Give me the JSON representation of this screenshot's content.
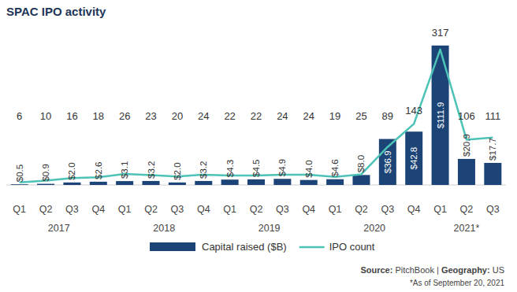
{
  "chart_data": {
    "type": "bar",
    "title": "SPAC IPO activity",
    "categories": [
      "Q1",
      "Q2",
      "Q3",
      "Q4",
      "Q1",
      "Q2",
      "Q3",
      "Q4",
      "Q1",
      "Q2",
      "Q3",
      "Q4",
      "Q1",
      "Q2",
      "Q3",
      "Q4",
      "Q1",
      "Q2",
      "Q3"
    ],
    "x_groups": [
      "2017",
      "2017",
      "2017",
      "2017",
      "2018",
      "2018",
      "2018",
      "2018",
      "2019",
      "2019",
      "2019",
      "2019",
      "2020",
      "2020",
      "2020",
      "2020",
      "2021*",
      "2021*",
      "2021*"
    ],
    "series": [
      {
        "name": "Capital raised ($B)",
        "type": "bar",
        "color": "#1d4477",
        "values": [
          0.5,
          0.9,
          2.0,
          2.6,
          3.1,
          3.2,
          2.0,
          3.2,
          4.3,
          4.5,
          4.9,
          4.0,
          4.6,
          8.0,
          36.9,
          42.8,
          111.9,
          20.9,
          17.7
        ],
        "value_labels": [
          "$0.5",
          "$0.9",
          "$2.0",
          "$2.6",
          "$3.1",
          "$3.2",
          "$2.0",
          "$3.2",
          "$4.3",
          "$4.5",
          "$4.9",
          "$4.0",
          "$4.6",
          "$8.0",
          "$36.9",
          "$42.8",
          "$111.9",
          "$20.9",
          "$17.7"
        ]
      },
      {
        "name": "IPO count",
        "type": "line",
        "color": "#4cc3b6",
        "axis": "y2",
        "values": [
          6,
          10,
          16,
          18,
          26,
          23,
          20,
          24,
          22,
          22,
          24,
          24,
          19,
          25,
          89,
          143,
          317,
          106,
          111
        ]
      }
    ],
    "ylim": [
      0,
      120
    ],
    "y2lim": [
      0,
      350
    ],
    "data_labels": true,
    "tick_labels": "x",
    "legend": "bottom",
    "source": [
      "Source:",
      "PitchBook |",
      "Geography:",
      "US"
    ],
    "note": "*As of September 20, 2021"
  }
}
